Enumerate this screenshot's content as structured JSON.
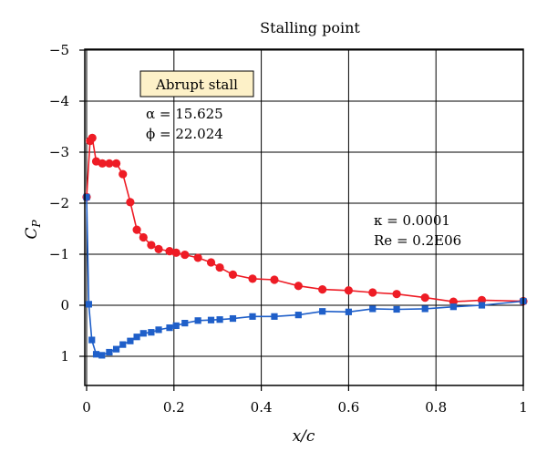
{
  "chart_data": {
    "type": "line",
    "title": "Stalling point",
    "xlabel": "x/c",
    "ylabel_main": "C",
    "ylabel_sub": "P",
    "xlim": [
      0,
      1
    ],
    "ylim_top": -5,
    "ylim_bottom": 1.3,
    "y_axis_inverted": true,
    "grid": true,
    "x_ticks": [
      0,
      0.2,
      0.4,
      0.6,
      0.8,
      1
    ],
    "x_tick_labels": [
      "0",
      "0.2",
      "0.4",
      "0.6",
      "0.8",
      "1"
    ],
    "y_ticks": [
      -5,
      -4,
      -3,
      -2,
      -1,
      0,
      1
    ],
    "y_tick_labels": [
      "−5",
      "−4",
      "−3",
      "−2",
      "−1",
      "0",
      "1"
    ],
    "annotation_box": "Abrupt stall",
    "annotation_alpha": "α = 15.625",
    "annotation_phi": "ϕ = 22.024",
    "annotation_kappa": "κ = 0.0001",
    "annotation_re": "Re = 0.2E06",
    "series": [
      {
        "color": "#ee1c25",
        "marker": "circle",
        "x": [
          0.0,
          0.008,
          0.013,
          0.022,
          0.036,
          0.052,
          0.068,
          0.083,
          0.1,
          0.115,
          0.13,
          0.148,
          0.165,
          0.19,
          0.205,
          0.225,
          0.255,
          0.285,
          0.305,
          0.335,
          0.38,
          0.43,
          0.485,
          0.54,
          0.6,
          0.655,
          0.71,
          0.775,
          0.84,
          0.905,
          1.0
        ],
        "y": [
          -2.12,
          -3.22,
          -3.28,
          -2.82,
          -2.78,
          -2.78,
          -2.78,
          -2.57,
          -2.02,
          -1.48,
          -1.33,
          -1.18,
          -1.1,
          -1.06,
          -1.03,
          -0.99,
          -0.93,
          -0.84,
          -0.74,
          -0.6,
          -0.52,
          -0.5,
          -0.38,
          -0.31,
          -0.29,
          -0.25,
          -0.22,
          -0.15,
          -0.07,
          -0.1,
          -0.08
        ]
      },
      {
        "color": "#1f5fc9",
        "marker": "square",
        "x": [
          0.0,
          0.005,
          0.012,
          0.022,
          0.035,
          0.052,
          0.068,
          0.083,
          0.1,
          0.115,
          0.13,
          0.148,
          0.165,
          0.19,
          0.205,
          0.225,
          0.255,
          0.285,
          0.305,
          0.335,
          0.38,
          0.43,
          0.485,
          0.54,
          0.6,
          0.655,
          0.71,
          0.775,
          0.84,
          0.905,
          1.0
        ],
        "y": [
          -2.12,
          -0.02,
          0.68,
          0.96,
          0.98,
          0.92,
          0.86,
          0.77,
          0.7,
          0.62,
          0.55,
          0.53,
          0.48,
          0.44,
          0.4,
          0.35,
          0.3,
          0.29,
          0.28,
          0.26,
          0.22,
          0.22,
          0.19,
          0.12,
          0.13,
          0.07,
          0.08,
          0.07,
          0.03,
          0.0,
          -0.08
        ]
      }
    ]
  }
}
